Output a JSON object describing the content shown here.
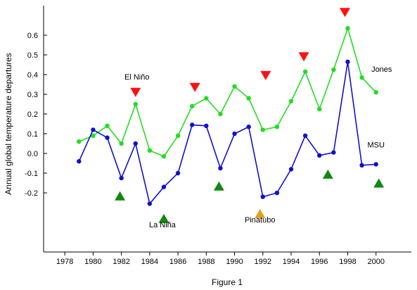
{
  "chart_data": {
    "type": "line",
    "ylabel": "Annual global temperature departures",
    "caption": "Figure 1",
    "xlim": [
      1976.5,
      2002.5
    ],
    "ylim": [
      -0.5,
      0.75
    ],
    "x_ticks": [
      1978,
      1980,
      1982,
      1984,
      1986,
      1988,
      1990,
      1992,
      1994,
      1996,
      1998,
      2000
    ],
    "y_ticks": [
      -0.2,
      -0.1,
      0.0,
      0.1,
      0.2,
      0.3,
      0.4,
      0.5,
      0.6
    ],
    "y_tick_labels": [
      "-0.2",
      "-0.1",
      "0.0",
      "0.1",
      "0.2",
      "0.3",
      "0.4",
      "0.5",
      "0.6"
    ],
    "grid": false,
    "series": [
      {
        "name": "Jones",
        "color": "#22dd22",
        "x": [
          1979,
          1980,
          1981,
          1982,
          1983,
          1984,
          1985,
          1986,
          1987,
          1988,
          1989,
          1990,
          1991,
          1992,
          1993,
          1994,
          1995,
          1996,
          1997,
          1998,
          1999,
          2000
        ],
        "values": [
          0.06,
          0.09,
          0.14,
          0.05,
          0.25,
          0.015,
          -0.015,
          0.09,
          0.24,
          0.28,
          0.2,
          0.34,
          0.28,
          0.12,
          0.135,
          0.265,
          0.415,
          0.225,
          0.425,
          0.635,
          0.385,
          0.31
        ]
      },
      {
        "name": "MSU",
        "color": "#1010cc",
        "x": [
          1979,
          1980,
          1981,
          1982,
          1983,
          1984,
          1985,
          1986,
          1987,
          1988,
          1989,
          1990,
          1991,
          1992,
          1993,
          1994,
          1995,
          1996,
          1997,
          1998,
          1999,
          2000
        ],
        "values": [
          -0.04,
          0.12,
          0.08,
          -0.125,
          0.05,
          -0.255,
          -0.17,
          -0.1,
          0.145,
          0.14,
          -0.075,
          0.1,
          0.135,
          -0.22,
          -0.2,
          -0.08,
          0.09,
          -0.01,
          0.005,
          0.465,
          -0.06,
          -0.055
        ]
      }
    ],
    "series_labels": [
      {
        "text": "Jones",
        "x": 2000.4,
        "y": 0.415
      },
      {
        "text": "MSU",
        "x": 2000.0,
        "y": 0.03
      }
    ],
    "markers": {
      "el_nino": {
        "color": "#ff1111",
        "points": [
          {
            "x": 1983,
            "y": 0.31
          },
          {
            "x": 1987.2,
            "y": 0.335
          },
          {
            "x": 1992.2,
            "y": 0.395
          },
          {
            "x": 1994.9,
            "y": 0.49
          },
          {
            "x": 1997.8,
            "y": 0.715
          }
        ]
      },
      "la_nina": {
        "color": "#118811",
        "points": [
          {
            "x": 1981.9,
            "y": -0.215
          },
          {
            "x": 1985,
            "y": -0.33
          },
          {
            "x": 1988.9,
            "y": -0.165
          },
          {
            "x": 1996.6,
            "y": -0.105
          },
          {
            "x": 2000.2,
            "y": -0.15
          }
        ]
      },
      "pinatubo": {
        "color": "#e0a020",
        "points": [
          {
            "x": 1991.8,
            "y": -0.305
          }
        ]
      }
    },
    "annotations": [
      {
        "text": "El Niño",
        "x": 1983.1,
        "y": 0.375
      },
      {
        "text": "La Niña",
        "x": 1984.9,
        "y": -0.375
      },
      {
        "text": "Pinatubo",
        "x": 1991.8,
        "y": -0.35
      }
    ]
  }
}
